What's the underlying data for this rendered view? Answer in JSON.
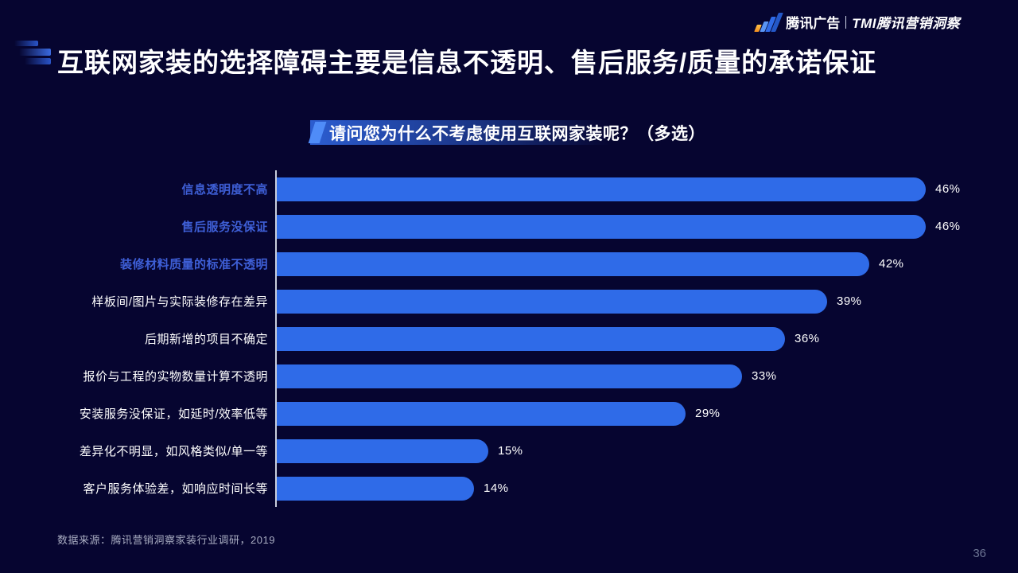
{
  "brand": {
    "left": "腾讯广告",
    "right": "TMI腾讯营销洞察"
  },
  "title": "互联网家装的选择障碍主要是信息不透明、售后服务/质量的承诺保证",
  "chart_data": {
    "type": "bar",
    "orientation": "horizontal",
    "title": "请问您为什么不考虑使用互联网家装呢？（多选）",
    "unit": "%",
    "xlim": [
      0,
      50
    ],
    "grid": false,
    "legend": false,
    "categories": [
      "信息透明度不高",
      "售后服务没保证",
      "装修材料质量的标准不透明",
      "样板间/图片与实际装修存在差异",
      "后期新增的项目不确定",
      "报价与工程的实物数量计算不透明",
      "安装服务没保证，如延时/效率低等",
      "差异化不明显，如风格类似/单一等",
      "客户服务体验差，如响应时间长等"
    ],
    "values": [
      46,
      46,
      42,
      39,
      36,
      33,
      29,
      15,
      14
    ],
    "highlighted_categories": [
      "信息透明度不高",
      "售后服务没保证",
      "装修材料质量的标准不透明"
    ],
    "bar_color": "#2f6be8",
    "highlight_label_color": "#3e5fd6"
  },
  "footer": {
    "source": "数据来源：腾讯营销洞察家装行业调研，2019",
    "page_number": "36"
  },
  "colors": {
    "background": "#060530",
    "accent_blue": "#2f6be8",
    "banner_blue": "#2e62d9",
    "logo_orange": "#f08c1e"
  }
}
